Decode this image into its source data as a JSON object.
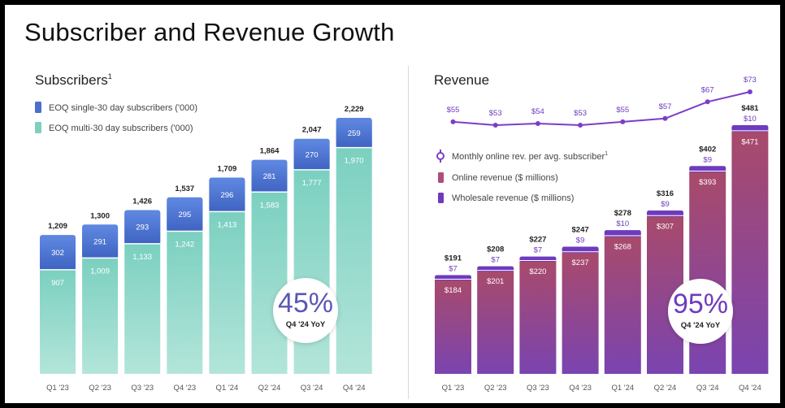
{
  "page_title": "Subscriber and Revenue Growth",
  "subscribers": {
    "title": "Subscribers",
    "title_sup": "1",
    "legend": [
      {
        "label": "EOQ single-30 day subscribers ('000)",
        "color": "#4b6fcb"
      },
      {
        "label": "EOQ multi-30 day subscribers  ('000)",
        "color": "#7fcfbf"
      }
    ],
    "badge": {
      "value": "45%",
      "label": "Q4 '24 YoY"
    }
  },
  "revenue": {
    "title": "Revenue",
    "legend": [
      {
        "label": "Monthly online rev. per avg. subscriber",
        "sup": "1",
        "color": "#7d3dc6"
      },
      {
        "label": "Online revenue ($ millions)",
        "color": "#b04d78"
      },
      {
        "label": "Wholesale revenue ($ millions)",
        "color": "#6e3bbd"
      }
    ],
    "badge": {
      "value": "95%",
      "label": "Q4 '24 YoY"
    }
  },
  "colors": {
    "sub_single_top": "#5e87e0",
    "sub_single_bottom": "#3f63c2",
    "sub_multi_top": "#7bd0c0",
    "sub_multi_bottom": "#b3e5da",
    "rev_online_top": "#a94a6a",
    "rev_online_bottom": "#7a44b0",
    "rev_wholesale": "#6e3bbd",
    "line": "#7d3dc6"
  },
  "chart_data": [
    {
      "type": "bar",
      "stacked": true,
      "categories": [
        "Q1 '23",
        "Q2 '23",
        "Q3 '23",
        "Q4 '23",
        "Q1 '24",
        "Q2 '24",
        "Q3 '24",
        "Q4 '24"
      ],
      "series": [
        {
          "name": "EOQ multi-30 day subscribers  ('000)",
          "values": [
            907,
            1009,
            1133,
            1242,
            1413,
            1583,
            1777,
            1970
          ]
        },
        {
          "name": "EOQ single-30 day subscribers ('000)",
          "values": [
            302,
            291,
            293,
            295,
            296,
            281,
            270,
            259
          ]
        }
      ],
      "totals": [
        1209,
        1300,
        1426,
        1537,
        1709,
        1864,
        2047,
        2229
      ],
      "total_labels": [
        "1,209",
        "1,300",
        "1,426",
        "1,537",
        "1,709",
        "1,864",
        "2,047",
        "2,229"
      ],
      "multi_labels": [
        "907",
        "1,009",
        "1,133",
        "1,242",
        "1,413",
        "1,583",
        "1,777",
        "1,970"
      ],
      "single_labels": [
        "302",
        "291",
        "293",
        "295",
        "296",
        "281",
        "270",
        "259"
      ],
      "ylim": [
        0,
        2229
      ]
    },
    {
      "type": "bar",
      "stacked": true,
      "categories": [
        "Q1 '23",
        "Q2 '23",
        "Q3 '23",
        "Q4 '23",
        "Q1 '24",
        "Q2 '24",
        "Q3 '24",
        "Q4 '24"
      ],
      "series": [
        {
          "name": "Online revenue ($ millions)",
          "values": [
            184,
            201,
            220,
            237,
            268,
            307,
            393,
            471
          ]
        },
        {
          "name": "Wholesale revenue ($ millions)",
          "values": [
            7,
            7,
            7,
            9,
            10,
            9,
            9,
            10
          ]
        }
      ],
      "totals": [
        191,
        208,
        227,
        247,
        278,
        316,
        402,
        481
      ],
      "total_labels": [
        "$191",
        "$208",
        "$227",
        "$247",
        "$278",
        "$316",
        "$402",
        "$481"
      ],
      "online_labels": [
        "$184",
        "$201",
        "$220",
        "$237",
        "$268",
        "$307",
        "$393",
        "$471"
      ],
      "wholesale_labels": [
        "$7",
        "$7",
        "$7",
        "$9",
        "$10",
        "$9",
        "$9",
        "$10"
      ],
      "line": {
        "name": "Monthly online rev. per avg. subscriber",
        "values": [
          55,
          53,
          54,
          53,
          55,
          57,
          67,
          73
        ],
        "labels": [
          "$55",
          "$53",
          "$54",
          "$53",
          "$55",
          "$57",
          "$67",
          "$73"
        ]
      },
      "ylim": [
        0,
        481
      ]
    }
  ]
}
